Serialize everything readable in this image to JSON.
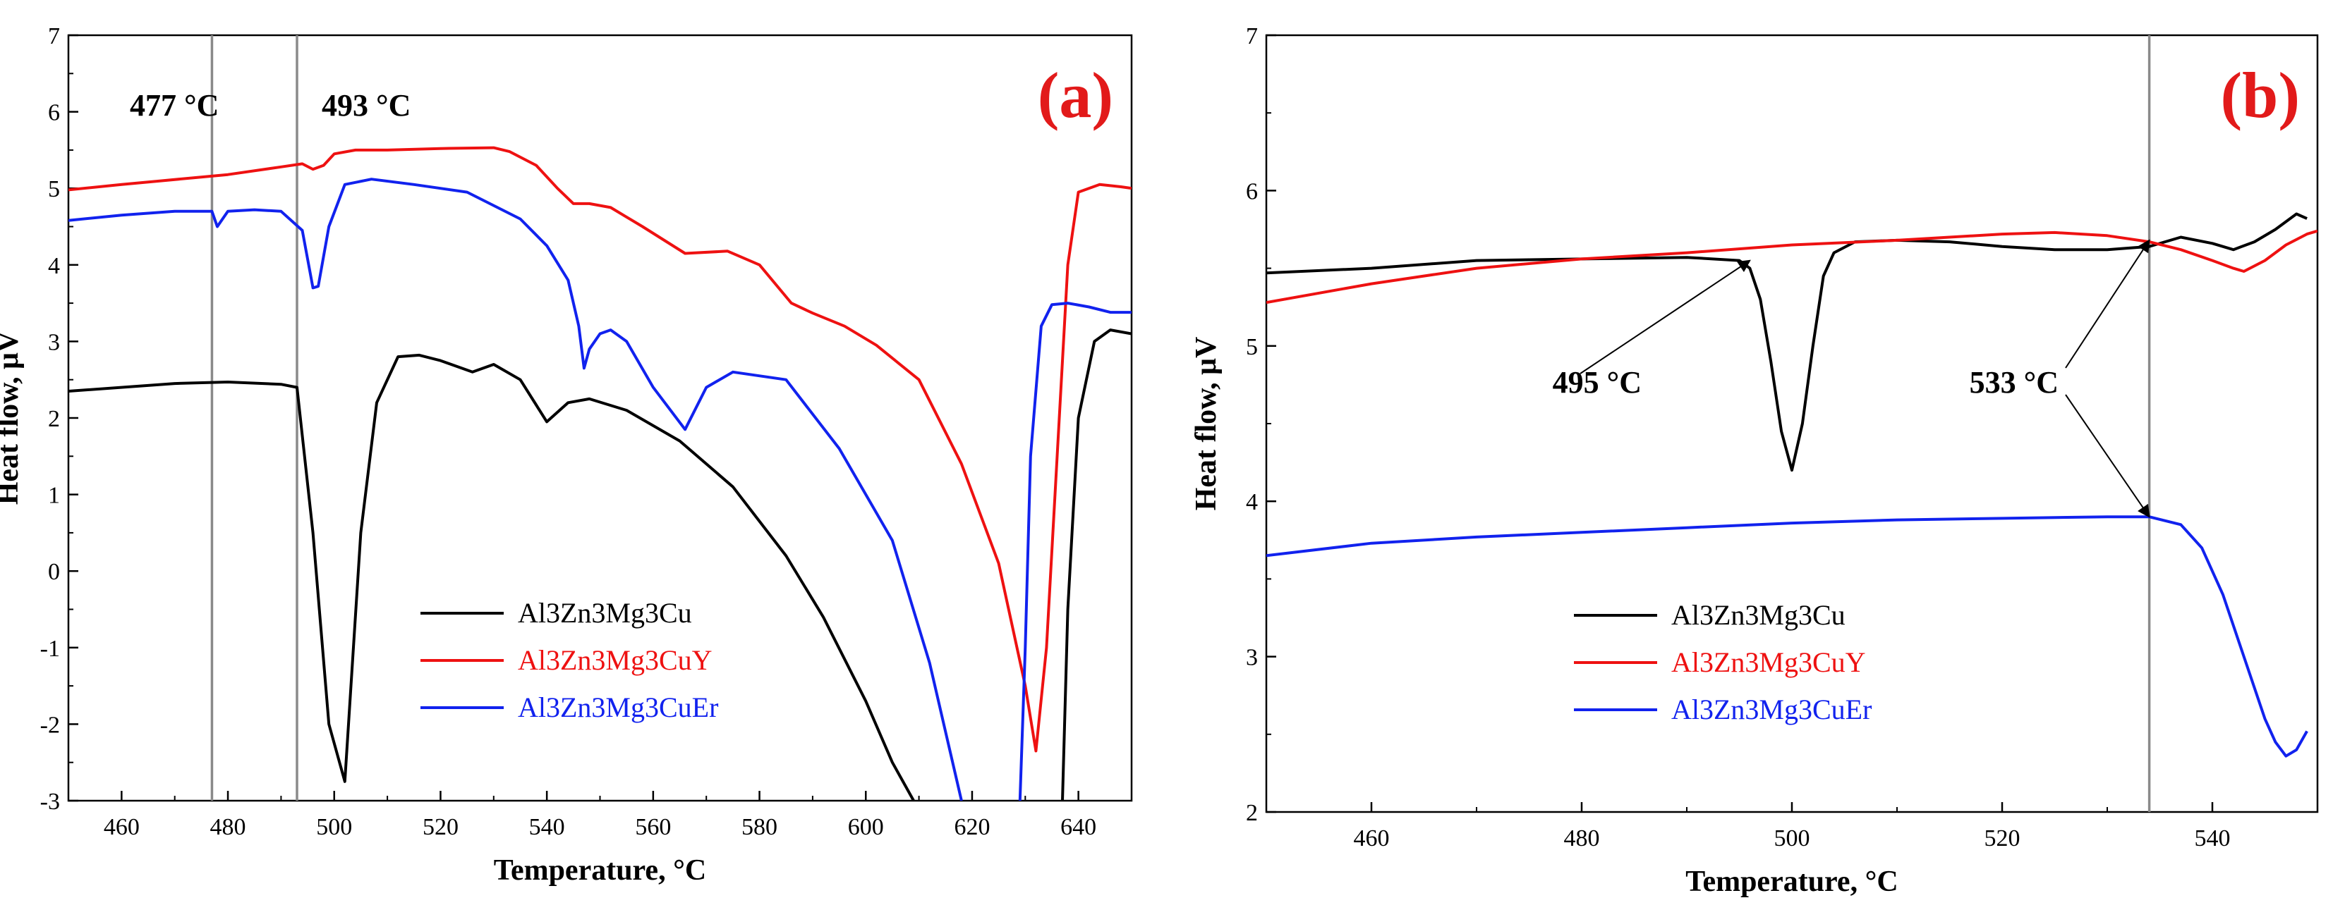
{
  "colors": {
    "black": "#000000",
    "red": "#ee1111",
    "blue": "#1122ee",
    "vline": "#8a8a8a"
  },
  "chart_data": [
    {
      "type": "line",
      "panel_label": "(a)",
      "xlabel": "Temperature, °C",
      "ylabel": "Heat flow, μV",
      "xlim": [
        450,
        650
      ],
      "ylim": [
        -3,
        7
      ],
      "xticks": [
        "460",
        "480",
        "500",
        "520",
        "540",
        "560",
        "580",
        "600",
        "620",
        "640"
      ],
      "yticks": [
        "-3",
        "-2",
        "-1",
        "0",
        "1",
        "2",
        "3",
        "4",
        "5",
        "6",
        "7"
      ],
      "vlines": [
        {
          "x": 477,
          "label": "477 °C"
        },
        {
          "x": 493,
          "label": "493 °C"
        }
      ],
      "legend": [
        "Al3Zn3Mg3Cu",
        "Al3Zn3Mg3CuY",
        "Al3Zn3Mg3CuEr"
      ],
      "series": [
        {
          "name": "Al3Zn3Mg3Cu",
          "color": "#000000",
          "x": [
            450,
            470,
            480,
            490,
            493,
            496,
            499,
            502,
            505,
            508,
            512,
            516,
            520,
            526,
            530,
            535,
            540,
            544,
            548,
            555,
            565,
            575,
            585,
            592,
            600,
            605,
            609
          ],
          "y": [
            2.35,
            2.45,
            2.47,
            2.44,
            2.4,
            0.5,
            -2.0,
            -2.75,
            0.5,
            2.2,
            2.8,
            2.82,
            2.75,
            2.6,
            2.7,
            2.5,
            1.95,
            2.2,
            2.25,
            2.1,
            1.7,
            1.1,
            0.2,
            -0.6,
            -1.7,
            -2.5,
            -3.0
          ]
        },
        {
          "name": "Al3Zn3Mg3Cu",
          "color": "#000000",
          "x": [
            637,
            638,
            640,
            643,
            646,
            650
          ],
          "y": [
            -3.0,
            -0.5,
            2.0,
            3.0,
            3.15,
            3.1
          ]
        },
        {
          "name": "Al3Zn3Mg3CuY",
          "color": "#ee1111",
          "x": [
            450,
            460,
            480,
            490,
            494,
            496,
            498,
            500,
            504,
            510,
            520,
            530,
            533,
            538,
            542,
            545,
            548,
            552,
            558,
            566,
            574,
            580,
            586,
            590,
            596,
            602,
            610,
            618,
            625,
            630,
            632,
            634,
            636,
            638,
            640,
            644,
            648,
            650
          ],
          "y": [
            4.98,
            5.05,
            5.18,
            5.28,
            5.32,
            5.25,
            5.3,
            5.45,
            5.5,
            5.5,
            5.52,
            5.53,
            5.48,
            5.3,
            5.0,
            4.8,
            4.8,
            4.75,
            4.5,
            4.15,
            4.18,
            4.0,
            3.5,
            3.37,
            3.2,
            2.95,
            2.5,
            1.4,
            0.1,
            -1.5,
            -2.35,
            -1.0,
            1.5,
            4.0,
            4.95,
            5.05,
            5.02,
            5.0
          ]
        },
        {
          "name": "Al3Zn3Mg3CuEr",
          "color": "#1122ee",
          "x": [
            450,
            460,
            470,
            477,
            478,
            480,
            485,
            490,
            494,
            496,
            497,
            499,
            502,
            507,
            515,
            525,
            535,
            540,
            544,
            546,
            547,
            548,
            550,
            552,
            555,
            560,
            566,
            570,
            575,
            585,
            595,
            605,
            612,
            618
          ],
          "y": [
            4.58,
            4.65,
            4.7,
            4.7,
            4.5,
            4.7,
            4.72,
            4.7,
            4.45,
            3.7,
            3.72,
            4.5,
            5.05,
            5.12,
            5.05,
            4.95,
            4.6,
            4.25,
            3.8,
            3.2,
            2.65,
            2.9,
            3.1,
            3.15,
            3.0,
            2.4,
            1.85,
            2.4,
            2.6,
            2.5,
            1.6,
            0.4,
            -1.2,
            -3.0
          ]
        },
        {
          "name": "Al3Zn3Mg3CuEr",
          "color": "#1122ee",
          "x": [
            629,
            630,
            631,
            633,
            635,
            638,
            642,
            646,
            650
          ],
          "y": [
            -3.0,
            -1.0,
            1.5,
            3.2,
            3.48,
            3.5,
            3.45,
            3.38,
            3.38
          ]
        }
      ]
    },
    {
      "type": "line",
      "panel_label": "(b)",
      "xlabel": "Temperature, °C",
      "ylabel": "Heat flow, μV",
      "xlim": [
        450,
        550
      ],
      "ylim": [
        2,
        7
      ],
      "xticks": [
        "460",
        "480",
        "500",
        "520",
        "540"
      ],
      "yticks": [
        "2",
        "3",
        "4",
        "5",
        "6",
        "7"
      ],
      "vlines": [
        {
          "x": 534,
          "label": "533 °C"
        }
      ],
      "annotations": [
        {
          "text": "495 °C",
          "point": [
            496,
            5.55
          ]
        },
        {
          "text": "533 °C",
          "point": [
            534,
            5.68
          ]
        },
        {
          "text": "533 °C",
          "point": [
            534,
            3.9
          ]
        }
      ],
      "legend": [
        "Al3Zn3Mg3Cu",
        "Al3Zn3Mg3CuY",
        "Al3Zn3Mg3CuEr"
      ],
      "series": [
        {
          "name": "Al3Zn3Mg3Cu",
          "color": "#000000",
          "x": [
            450,
            460,
            470,
            480,
            490,
            495,
            496,
            497,
            498,
            499,
            500,
            501,
            502,
            503,
            504,
            506,
            510,
            515,
            520,
            525,
            530,
            534,
            537,
            540,
            542,
            544,
            546,
            548,
            549
          ],
          "y": [
            5.47,
            5.5,
            5.55,
            5.56,
            5.57,
            5.55,
            5.5,
            5.3,
            4.9,
            4.45,
            4.2,
            4.5,
            5.0,
            5.45,
            5.6,
            5.67,
            5.68,
            5.67,
            5.64,
            5.62,
            5.62,
            5.64,
            5.7,
            5.66,
            5.62,
            5.67,
            5.75,
            5.85,
            5.82
          ]
        },
        {
          "name": "Al3Zn3Mg3CuY",
          "color": "#ee1111",
          "x": [
            450,
            460,
            470,
            480,
            490,
            500,
            510,
            520,
            525,
            530,
            534,
            537,
            540,
            542,
            543,
            545,
            547,
            549,
            550
          ],
          "y": [
            5.28,
            5.4,
            5.5,
            5.56,
            5.6,
            5.65,
            5.68,
            5.72,
            5.73,
            5.71,
            5.67,
            5.62,
            5.55,
            5.5,
            5.48,
            5.55,
            5.65,
            5.72,
            5.74
          ]
        },
        {
          "name": "Al3Zn3Mg3CuEr",
          "color": "#1122ee",
          "x": [
            450,
            460,
            470,
            480,
            490,
            500,
            510,
            520,
            530,
            534,
            537,
            539,
            541,
            543,
            545,
            546,
            547,
            548,
            549
          ],
          "y": [
            3.65,
            3.73,
            3.77,
            3.8,
            3.83,
            3.86,
            3.88,
            3.89,
            3.9,
            3.9,
            3.85,
            3.7,
            3.4,
            3.0,
            2.6,
            2.45,
            2.36,
            2.4,
            2.52
          ]
        }
      ]
    }
  ]
}
